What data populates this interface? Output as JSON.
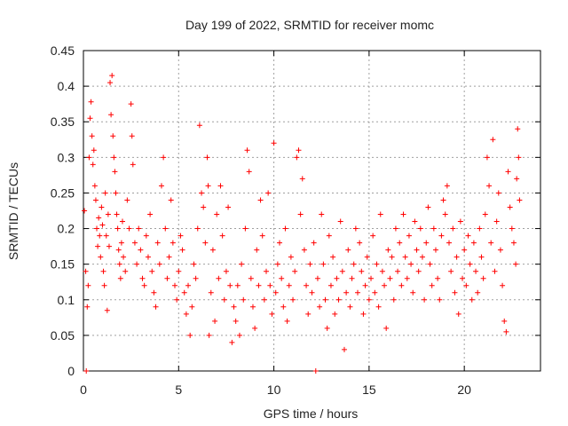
{
  "chart_data": {
    "type": "scatter",
    "title": "Day 199 of 2022, SRMTID for receiver momc",
    "xlabel": "GPS time / hours",
    "ylabel": "SRMTID / TECUs",
    "xlim": [
      0,
      24
    ],
    "ylim": [
      0,
      0.45
    ],
    "x_ticks": [
      "0",
      "5",
      "10",
      "15",
      "20"
    ],
    "y_ticks": [
      "0",
      "0.05",
      "0.1",
      "0.15",
      "0.2",
      "0.25",
      "0.3",
      "0.35",
      "0.4",
      "0.45"
    ],
    "x_tick_values": [
      0,
      5,
      10,
      15,
      20
    ],
    "y_tick_values": [
      0,
      0.05,
      0.1,
      0.15,
      0.2,
      0.25,
      0.3,
      0.35,
      0.4,
      0.45
    ],
    "grid": true,
    "marker": "+",
    "color": "#ff0000",
    "series": [
      {
        "points": [
          [
            0.05,
            0.225
          ],
          [
            0.12,
            0.14
          ],
          [
            0.15,
            0.0
          ],
          [
            0.2,
            0.09
          ],
          [
            0.25,
            0.12
          ],
          [
            0.3,
            0.3
          ],
          [
            0.35,
            0.355
          ],
          [
            0.4,
            0.378
          ],
          [
            0.45,
            0.33
          ],
          [
            0.5,
            0.29
          ],
          [
            0.55,
            0.31
          ],
          [
            0.6,
            0.26
          ],
          [
            0.65,
            0.24
          ],
          [
            0.7,
            0.2
          ],
          [
            0.75,
            0.175
          ],
          [
            0.8,
            0.215
          ],
          [
            0.85,
            0.19
          ],
          [
            0.9,
            0.16
          ],
          [
            0.95,
            0.23
          ],
          [
            1.0,
            0.205
          ],
          [
            1.05,
            0.14
          ],
          [
            1.1,
            0.12
          ],
          [
            1.15,
            0.25
          ],
          [
            1.2,
            0.19
          ],
          [
            1.25,
            0.085
          ],
          [
            1.3,
            0.22
          ],
          [
            1.35,
            0.175
          ],
          [
            1.4,
            0.405
          ],
          [
            1.45,
            0.36
          ],
          [
            1.5,
            0.415
          ],
          [
            1.55,
            0.33
          ],
          [
            1.6,
            0.3
          ],
          [
            1.65,
            0.28
          ],
          [
            1.7,
            0.25
          ],
          [
            1.75,
            0.22
          ],
          [
            1.8,
            0.2
          ],
          [
            1.85,
            0.17
          ],
          [
            1.9,
            0.15
          ],
          [
            1.95,
            0.13
          ],
          [
            2.0,
            0.18
          ],
          [
            2.05,
            0.21
          ],
          [
            2.1,
            0.16
          ],
          [
            2.2,
            0.14
          ],
          [
            2.3,
            0.24
          ],
          [
            2.4,
            0.2
          ],
          [
            2.5,
            0.375
          ],
          [
            2.55,
            0.33
          ],
          [
            2.6,
            0.29
          ],
          [
            2.7,
            0.18
          ],
          [
            2.8,
            0.15
          ],
          [
            2.9,
            0.2
          ],
          [
            3.0,
            0.17
          ],
          [
            3.1,
            0.13
          ],
          [
            3.2,
            0.12
          ],
          [
            3.3,
            0.19
          ],
          [
            3.4,
            0.16
          ],
          [
            3.5,
            0.22
          ],
          [
            3.6,
            0.14
          ],
          [
            3.7,
            0.11
          ],
          [
            3.8,
            0.09
          ],
          [
            3.9,
            0.18
          ],
          [
            4.0,
            0.15
          ],
          [
            4.1,
            0.26
          ],
          [
            4.2,
            0.3
          ],
          [
            4.3,
            0.2
          ],
          [
            4.4,
            0.13
          ],
          [
            4.5,
            0.16
          ],
          [
            4.6,
            0.24
          ],
          [
            4.7,
            0.18
          ],
          [
            4.8,
            0.12
          ],
          [
            4.9,
            0.1
          ],
          [
            5.0,
            0.14
          ],
          [
            5.1,
            0.19
          ],
          [
            5.2,
            0.17
          ],
          [
            5.3,
            0.11
          ],
          [
            5.4,
            0.08
          ],
          [
            5.5,
            0.12
          ],
          [
            5.6,
            0.05
          ],
          [
            5.7,
            0.09
          ],
          [
            5.8,
            0.15
          ],
          [
            5.9,
            0.13
          ],
          [
            6.0,
            0.2
          ],
          [
            6.1,
            0.345
          ],
          [
            6.2,
            0.25
          ],
          [
            6.3,
            0.23
          ],
          [
            6.4,
            0.18
          ],
          [
            6.5,
            0.3
          ],
          [
            6.55,
            0.26
          ],
          [
            6.6,
            0.05
          ],
          [
            6.7,
            0.11
          ],
          [
            6.8,
            0.17
          ],
          [
            6.9,
            0.07
          ],
          [
            7.0,
            0.22
          ],
          [
            7.1,
            0.13
          ],
          [
            7.2,
            0.26
          ],
          [
            7.3,
            0.19
          ],
          [
            7.4,
            0.1
          ],
          [
            7.5,
            0.14
          ],
          [
            7.6,
            0.23
          ],
          [
            7.7,
            0.12
          ],
          [
            7.8,
            0.04
          ],
          [
            7.9,
            0.09
          ],
          [
            8.0,
            0.07
          ],
          [
            8.1,
            0.12
          ],
          [
            8.2,
            0.05
          ],
          [
            8.3,
            0.15
          ],
          [
            8.4,
            0.1
          ],
          [
            8.5,
            0.2
          ],
          [
            8.6,
            0.31
          ],
          [
            8.7,
            0.28
          ],
          [
            8.8,
            0.13
          ],
          [
            8.9,
            0.09
          ],
          [
            9.0,
            0.06
          ],
          [
            9.1,
            0.17
          ],
          [
            9.2,
            0.12
          ],
          [
            9.3,
            0.24
          ],
          [
            9.4,
            0.19
          ],
          [
            9.5,
            0.1
          ],
          [
            9.6,
            0.14
          ],
          [
            9.7,
            0.25
          ],
          [
            9.8,
            0.12
          ],
          [
            9.9,
            0.08
          ],
          [
            10.0,
            0.32
          ],
          [
            10.1,
            0.11
          ],
          [
            10.2,
            0.15
          ],
          [
            10.3,
            0.18
          ],
          [
            10.4,
            0.13
          ],
          [
            10.5,
            0.09
          ],
          [
            10.6,
            0.2
          ],
          [
            10.7,
            0.07
          ],
          [
            10.8,
            0.12
          ],
          [
            10.9,
            0.16
          ],
          [
            11.0,
            0.1
          ],
          [
            11.1,
            0.14
          ],
          [
            11.2,
            0.3
          ],
          [
            11.3,
            0.31
          ],
          [
            11.4,
            0.22
          ],
          [
            11.5,
            0.27
          ],
          [
            11.6,
            0.17
          ],
          [
            11.7,
            0.12
          ],
          [
            11.8,
            0.08
          ],
          [
            11.9,
            0.15
          ],
          [
            12.0,
            0.11
          ],
          [
            12.1,
            0.18
          ],
          [
            12.2,
            0.0
          ],
          [
            12.3,
            0.13
          ],
          [
            12.4,
            0.09
          ],
          [
            12.5,
            0.22
          ],
          [
            12.6,
            0.15
          ],
          [
            12.7,
            0.1
          ],
          [
            12.8,
            0.06
          ],
          [
            12.9,
            0.19
          ],
          [
            13.0,
            0.12
          ],
          [
            13.1,
            0.16
          ],
          [
            13.2,
            0.08
          ],
          [
            13.3,
            0.13
          ],
          [
            13.4,
            0.1
          ],
          [
            13.5,
            0.21
          ],
          [
            13.6,
            0.14
          ],
          [
            13.7,
            0.03
          ],
          [
            13.8,
            0.11
          ],
          [
            13.9,
            0.17
          ],
          [
            14.0,
            0.09
          ],
          [
            14.1,
            0.13
          ],
          [
            14.2,
            0.15
          ],
          [
            14.3,
            0.2
          ],
          [
            14.4,
            0.11
          ],
          [
            14.5,
            0.18
          ],
          [
            14.6,
            0.14
          ],
          [
            14.7,
            0.08
          ],
          [
            14.8,
            0.12
          ],
          [
            14.9,
            0.16
          ],
          [
            15.0,
            0.1
          ],
          [
            15.1,
            0.13
          ],
          [
            15.2,
            0.19
          ],
          [
            15.3,
            0.11
          ],
          [
            15.4,
            0.15
          ],
          [
            15.5,
            0.09
          ],
          [
            15.6,
            0.22
          ],
          [
            15.7,
            0.14
          ],
          [
            15.8,
            0.12
          ],
          [
            15.9,
            0.06
          ],
          [
            16.0,
            0.17
          ],
          [
            16.1,
            0.13
          ],
          [
            16.2,
            0.16
          ],
          [
            16.3,
            0.1
          ],
          [
            16.4,
            0.2
          ],
          [
            16.5,
            0.14
          ],
          [
            16.6,
            0.18
          ],
          [
            16.7,
            0.12
          ],
          [
            16.8,
            0.22
          ],
          [
            16.9,
            0.16
          ],
          [
            17.0,
            0.13
          ],
          [
            17.1,
            0.19
          ],
          [
            17.2,
            0.15
          ],
          [
            17.3,
            0.11
          ],
          [
            17.4,
            0.21
          ],
          [
            17.5,
            0.17
          ],
          [
            17.6,
            0.14
          ],
          [
            17.7,
            0.2
          ],
          [
            17.8,
            0.16
          ],
          [
            17.9,
            0.1
          ],
          [
            18.0,
            0.18
          ],
          [
            18.1,
            0.23
          ],
          [
            18.2,
            0.15
          ],
          [
            18.3,
            0.12
          ],
          [
            18.4,
            0.2
          ],
          [
            18.5,
            0.17
          ],
          [
            18.6,
            0.13
          ],
          [
            18.7,
            0.1
          ],
          [
            18.8,
            0.19
          ],
          [
            18.9,
            0.24
          ],
          [
            19.0,
            0.22
          ],
          [
            19.1,
            0.26
          ],
          [
            19.2,
            0.18
          ],
          [
            19.3,
            0.14
          ],
          [
            19.4,
            0.2
          ],
          [
            19.5,
            0.11
          ],
          [
            19.6,
            0.16
          ],
          [
            19.7,
            0.08
          ],
          [
            19.8,
            0.21
          ],
          [
            19.9,
            0.13
          ],
          [
            20.0,
            0.17
          ],
          [
            20.1,
            0.12
          ],
          [
            20.2,
            0.19
          ],
          [
            20.3,
            0.15
          ],
          [
            20.4,
            0.1
          ],
          [
            20.5,
            0.18
          ],
          [
            20.6,
            0.14
          ],
          [
            20.7,
            0.11
          ],
          [
            20.8,
            0.2
          ],
          [
            20.9,
            0.16
          ],
          [
            21.0,
            0.13
          ],
          [
            21.1,
            0.22
          ],
          [
            21.2,
            0.3
          ],
          [
            21.3,
            0.26
          ],
          [
            21.4,
            0.18
          ],
          [
            21.5,
            0.325
          ],
          [
            21.6,
            0.14
          ],
          [
            21.7,
            0.21
          ],
          [
            21.8,
            0.25
          ],
          [
            21.9,
            0.17
          ],
          [
            22.0,
            0.12
          ],
          [
            22.1,
            0.07
          ],
          [
            22.2,
            0.055
          ],
          [
            22.3,
            0.28
          ],
          [
            22.4,
            0.23
          ],
          [
            22.5,
            0.2
          ],
          [
            22.6,
            0.18
          ],
          [
            22.7,
            0.15
          ],
          [
            22.75,
            0.27
          ],
          [
            22.8,
            0.34
          ],
          [
            22.85,
            0.3
          ],
          [
            22.9,
            0.24
          ]
        ]
      }
    ]
  }
}
